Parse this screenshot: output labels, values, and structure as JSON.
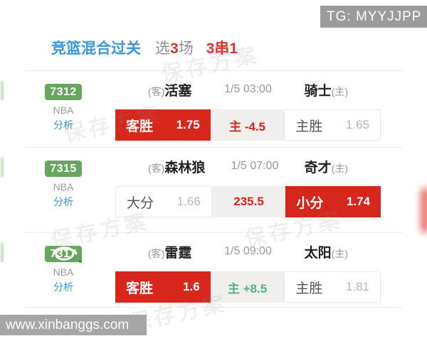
{
  "overlay": {
    "tg_label": "TG: MYYJJPP",
    "site_label": "www.xinbanggs.com",
    "watermark_text": "保存方案"
  },
  "header": {
    "title": "竞篮混合过关",
    "selection_prefix": "选",
    "selection_count": "3",
    "selection_suffix": "场",
    "parlay": "3串1"
  },
  "colors": {
    "selected_red": "#d7271d",
    "badge_green": "#68a55e",
    "link_blue": "#3b97e0",
    "line_green_text": "#53b183",
    "line_red_text": "#d7271d",
    "muted_gray": "#9a9a9a"
  },
  "matches": [
    {
      "id": "7312",
      "league": "NBA",
      "analysis_label": "分析",
      "away_prefix": "(客)",
      "away_team": "活塞",
      "time": "1/5 03:00",
      "home_team": "骑士",
      "home_suffix": "(主)",
      "obscured": false,
      "cells": [
        {
          "kind": "pick",
          "label": "客胜",
          "odds": "1.75",
          "selected": true
        },
        {
          "kind": "line",
          "text": "主 -4.5",
          "tone": "red"
        },
        {
          "kind": "pick",
          "label": "主胜",
          "odds": "1.65",
          "selected": false
        }
      ]
    },
    {
      "id": "7315",
      "league": "NBA",
      "analysis_label": "分析",
      "away_prefix": "(客)",
      "away_team": "森林狼",
      "time": "1/5 07:00",
      "home_team": "奇才",
      "home_suffix": "(主)",
      "obscured": false,
      "cells": [
        {
          "kind": "pick",
          "label": "大分",
          "odds": "1.66",
          "selected": false
        },
        {
          "kind": "line",
          "text": "235.5",
          "tone": "red"
        },
        {
          "kind": "pick",
          "label": "小分",
          "odds": "1.74",
          "selected": true
        }
      ]
    },
    {
      "id": "7317",
      "league": "NBA",
      "analysis_label": "分析",
      "away_prefix": "(客)",
      "away_team": "雷霆",
      "time": "1/5 09:00",
      "home_team": "太阳",
      "home_suffix": "(主)",
      "obscured": true,
      "cells": [
        {
          "kind": "pick",
          "label": "客胜",
          "odds": "1.6",
          "selected": true
        },
        {
          "kind": "line",
          "text": "主 +8.5",
          "tone": "green"
        },
        {
          "kind": "pick",
          "label": "主胜",
          "odds": "1.81",
          "selected": false
        }
      ]
    }
  ]
}
